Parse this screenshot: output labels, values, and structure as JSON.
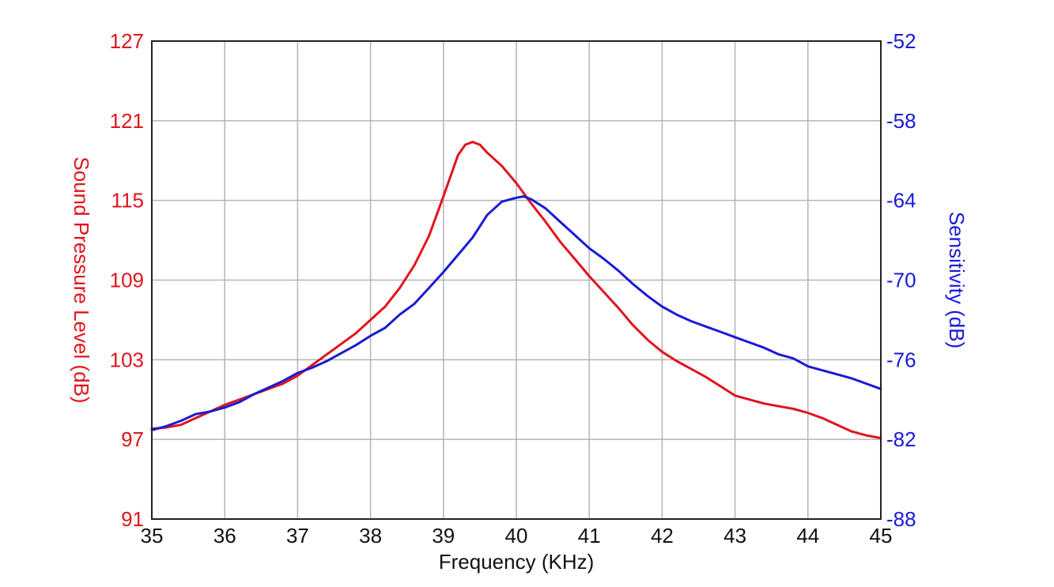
{
  "chart_data": {
    "type": "line",
    "title": "",
    "xlabel": "Frequency (KHz)",
    "ylabel_left": "Sound Pressure Level (dB)",
    "ylabel_right": "Sensitivity (dB)",
    "xlim": [
      35,
      45
    ],
    "ylim_left": [
      91,
      127
    ],
    "ylim_right": [
      -88,
      -52
    ],
    "x_ticks": [
      "35",
      "36",
      "37",
      "38",
      "39",
      "40",
      "41",
      "42",
      "43",
      "44",
      "45"
    ],
    "y_ticks_left": [
      "91",
      "97",
      "103",
      "109",
      "115",
      "121",
      "127"
    ],
    "y_ticks_right": [
      "-88",
      "-82",
      "-76",
      "-70",
      "-64",
      "-58",
      "-52"
    ],
    "grid": true,
    "legend": "none",
    "series": [
      {
        "axis": "left",
        "color": "#e0141c",
        "x": [
          35,
          35.2,
          35.4,
          35.6,
          35.8,
          36,
          36.2,
          36.4,
          36.6,
          36.8,
          37,
          37.2,
          37.4,
          37.6,
          37.8,
          38,
          38.2,
          38.4,
          38.6,
          38.8,
          39,
          39.2,
          39.3,
          39.4,
          39.5,
          39.6,
          39.8,
          40,
          40.2,
          40.4,
          40.6,
          40.8,
          41,
          41.2,
          41.4,
          41.6,
          41.8,
          42,
          42.2,
          42.4,
          42.6,
          42.8,
          43,
          43.2,
          43.4,
          43.6,
          43.8,
          44,
          44.2,
          44.4,
          44.6,
          44.8,
          45
        ],
        "values": [
          97.8,
          97.9,
          98.1,
          98.6,
          99.1,
          99.6,
          100.0,
          100.4,
          100.8,
          101.2,
          101.8,
          102.6,
          103.4,
          104.2,
          105.0,
          106.0,
          107.0,
          108.4,
          110.1,
          112.3,
          115.3,
          118.4,
          119.2,
          119.4,
          119.2,
          118.6,
          117.6,
          116.3,
          114.8,
          113.4,
          111.9,
          110.6,
          109.3,
          108.1,
          106.9,
          105.6,
          104.5,
          103.6,
          102.9,
          102.3,
          101.7,
          101.0,
          100.3,
          100.0,
          99.7,
          99.5,
          99.3,
          99.0,
          98.6,
          98.1,
          97.6,
          97.3,
          97.1
        ]
      },
      {
        "axis": "right",
        "color": "#1a1ad6",
        "x": [
          35,
          35.2,
          35.4,
          35.6,
          35.8,
          36,
          36.2,
          36.4,
          36.6,
          36.8,
          37,
          37.2,
          37.4,
          37.6,
          37.8,
          38,
          38.2,
          38.4,
          38.6,
          38.8,
          39,
          39.2,
          39.4,
          39.6,
          39.8,
          40,
          40.1,
          40.2,
          40.4,
          40.6,
          40.8,
          41,
          41.2,
          41.4,
          41.6,
          41.8,
          42,
          42.2,
          42.4,
          42.6,
          42.8,
          43,
          43.2,
          43.4,
          43.6,
          43.8,
          44,
          44.2,
          44.4,
          44.6,
          44.8,
          45
        ],
        "values": [
          -81.3,
          -81.0,
          -80.6,
          -80.1,
          -79.9,
          -79.6,
          -79.2,
          -78.6,
          -78.1,
          -77.6,
          -77.0,
          -76.6,
          -76.1,
          -75.5,
          -74.9,
          -74.2,
          -73.6,
          -72.6,
          -71.8,
          -70.6,
          -69.4,
          -68.1,
          -66.8,
          -65.1,
          -64.1,
          -63.8,
          -63.7,
          -63.9,
          -64.6,
          -65.6,
          -66.6,
          -67.6,
          -68.4,
          -69.3,
          -70.3,
          -71.2,
          -72.0,
          -72.6,
          -73.1,
          -73.5,
          -73.9,
          -74.3,
          -74.7,
          -75.1,
          -75.6,
          -75.9,
          -76.5,
          -76.8,
          -77.1,
          -77.4,
          -77.8,
          -78.2
        ]
      }
    ]
  }
}
